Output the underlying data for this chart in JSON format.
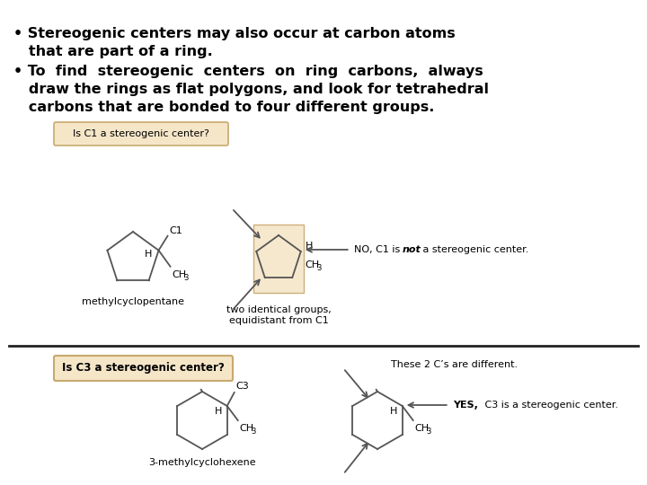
{
  "bg_color": "#ffffff",
  "box_color": "#f5e6c8",
  "box_border": "#c8a96e",
  "text_color": "#000000",
  "structure_color": "#555555",
  "bullet1_line1": "• Stereogenic centers may also occur at carbon atoms",
  "bullet1_line2": "   that are part of a ring.",
  "bullet2_line1": "• To  find  stereogenic  centers  on  ring  carbons,  always",
  "bullet2_line2": "   draw the rings as flat polygons, and look for tetrahedral",
  "bullet2_line3": "   carbons that are bonded to four different groups.",
  "box1_text": "Is C1 a stereogenic center?",
  "box2_text": "Is C3 a stereogenic center?",
  "label_methylcyclopentane": "methylcyclopentane",
  "label_two_identical": "two identical groups,",
  "label_equidistant": "equidistant from C1",
  "label_3methylcyclohexene": "3-methylcyclohexene",
  "label_these2": "These 2 C’s are different."
}
